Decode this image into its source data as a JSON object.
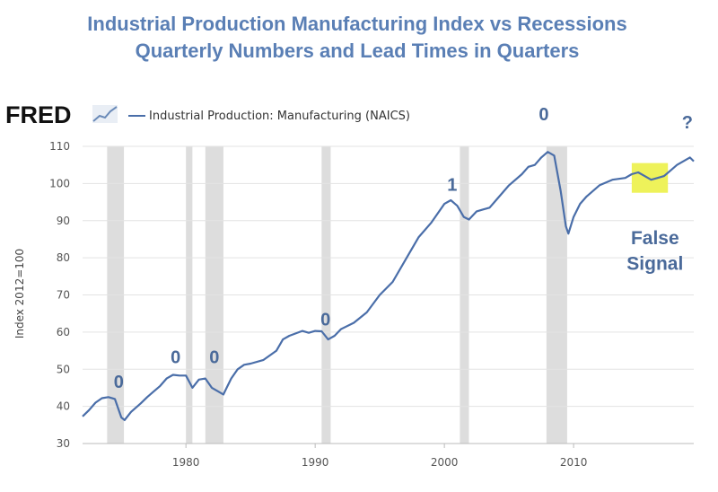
{
  "chart_data": {
    "type": "line",
    "title": "Industrial Production Manufacturing Index vs Recessions",
    "subtitle": "Quarterly Numbers and Lead Times in Quarters",
    "source_logo": "FRED",
    "legend": [
      "Industrial Production: Manufacturing (NAICS)"
    ],
    "legend_placement": "top-left",
    "ylabel": "Index 2012=100",
    "xlabel": "",
    "ylim": [
      30,
      110
    ],
    "xlim": [
      1972,
      2019.3
    ],
    "y_ticks": [
      30,
      40,
      50,
      60,
      70,
      80,
      90,
      100,
      110
    ],
    "x_ticks": [
      1980,
      1990,
      2000,
      2010
    ],
    "grid": "horizontal",
    "series_color": "#4a6ea9",
    "recession_color": "#dddddd",
    "recessions": [
      [
        1973.9,
        1975.2
      ],
      [
        1980.0,
        1980.5
      ],
      [
        1981.5,
        1982.9
      ],
      [
        1990.5,
        1991.2
      ],
      [
        2001.2,
        2001.9
      ],
      [
        2007.9,
        2009.5
      ]
    ],
    "series": [
      {
        "name": "Industrial Production: Manufacturing (NAICS)",
        "x": [
          1972.0,
          1972.5,
          1973.0,
          1973.5,
          1974.0,
          1974.5,
          1975.0,
          1975.25,
          1975.75,
          1976.5,
          1977.0,
          1977.5,
          1978.0,
          1978.5,
          1979.0,
          1979.5,
          1980.0,
          1980.5,
          1981.0,
          1981.5,
          1982.0,
          1982.5,
          1982.9,
          1983.5,
          1984.0,
          1984.5,
          1985.0,
          1986.0,
          1987.0,
          1987.5,
          1988.0,
          1989.0,
          1989.5,
          1990.0,
          1990.5,
          1991.0,
          1991.5,
          1992.0,
          1993.0,
          1994.0,
          1995.0,
          1996.0,
          1997.0,
          1998.0,
          1999.0,
          2000.0,
          2000.5,
          2001.0,
          2001.5,
          2001.9,
          2002.5,
          2003.0,
          2003.5,
          2004.0,
          2005.0,
          2006.0,
          2006.5,
          2007.0,
          2007.5,
          2008.0,
          2008.5,
          2009.0,
          2009.4,
          2009.6,
          2010.0,
          2010.5,
          2011.0,
          2012.0,
          2013.0,
          2014.0,
          2014.5,
          2015.0,
          2015.5,
          2016.0,
          2016.5,
          2017.0,
          2017.5,
          2018.0,
          2018.5,
          2019.0,
          2019.3
        ],
        "values": [
          37.3,
          39.0,
          41.0,
          42.2,
          42.5,
          42.0,
          37.0,
          36.3,
          38.5,
          40.8,
          42.5,
          44.0,
          45.5,
          47.5,
          48.5,
          48.3,
          48.3,
          45.0,
          47.2,
          47.5,
          45.0,
          44.0,
          43.2,
          47.5,
          50.0,
          51.2,
          51.5,
          52.5,
          55.0,
          58.0,
          59.0,
          60.3,
          59.8,
          60.3,
          60.2,
          58.0,
          59.0,
          60.8,
          62.5,
          65.3,
          70.0,
          73.5,
          79.5,
          85.5,
          89.5,
          94.5,
          95.5,
          94.0,
          91.0,
          90.3,
          92.5,
          93.0,
          93.5,
          95.5,
          99.5,
          102.5,
          104.5,
          105.0,
          107.0,
          108.5,
          107.5,
          98.0,
          88.5,
          86.5,
          91.0,
          94.5,
          96.5,
          99.5,
          101.0,
          101.5,
          102.5,
          103.0,
          102.0,
          101.0,
          101.5,
          102.0,
          103.5,
          105.0,
          106.0,
          107.0,
          106.0
        ]
      }
    ],
    "annotations": [
      {
        "text": "0",
        "x": 1974.8,
        "y": 45.0,
        "size": 20
      },
      {
        "text": "0",
        "x": 1979.2,
        "y": 51.6,
        "size": 20
      },
      {
        "text": "0",
        "x": 1982.2,
        "y": 51.6,
        "size": 20
      },
      {
        "text": "0",
        "x": 1990.8,
        "y": 61.8,
        "size": 20
      },
      {
        "text": "1",
        "x": 2000.6,
        "y": 98.0,
        "size": 20
      },
      {
        "text": "0",
        "x": 2007.7,
        "y": 117.0,
        "size": 20
      },
      {
        "text": "?",
        "x": 2018.8,
        "y": 114.8,
        "size": 20
      },
      {
        "text": "False",
        "x": 2016.3,
        "y": 83.7,
        "size": 21
      },
      {
        "text": "Signal",
        "x": 2016.3,
        "y": 76.8,
        "size": 21
      }
    ],
    "highlight": {
      "x": [
        2014.5,
        2017.3
      ],
      "y": [
        97.5,
        105.5
      ],
      "color": "#eef25a"
    }
  }
}
